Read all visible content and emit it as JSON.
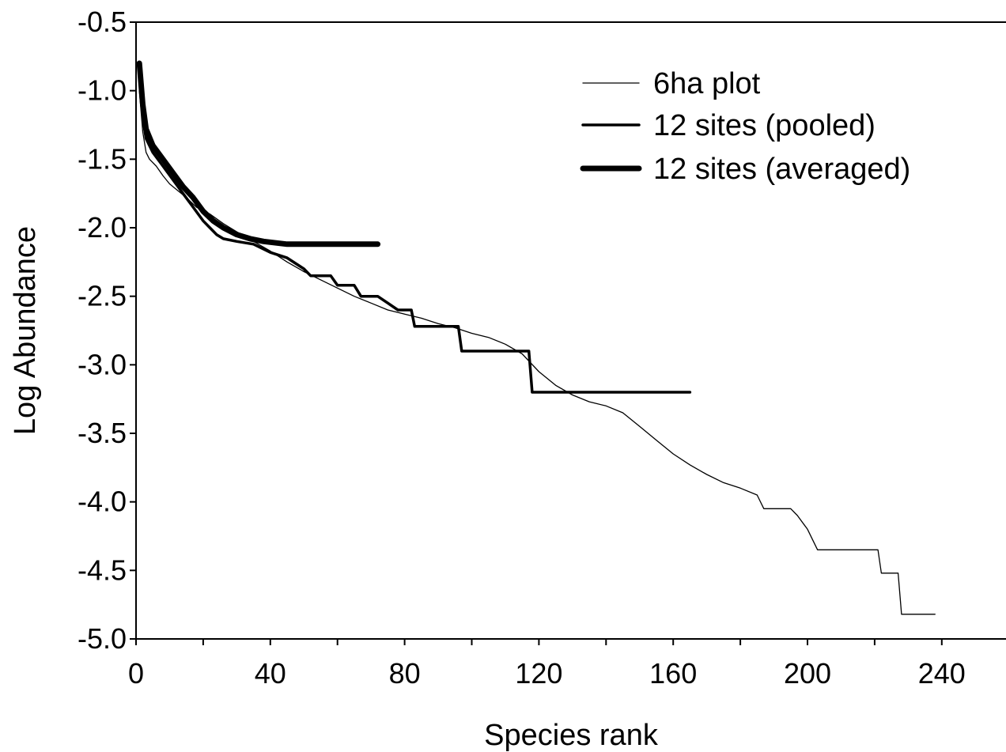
{
  "chart_data": {
    "type": "line",
    "xlabel": "Species rank",
    "ylabel": "Log Abundance",
    "xlim": [
      0,
      260
    ],
    "ylim": [
      -5.0,
      -0.5
    ],
    "xticks": [
      0,
      40,
      80,
      120,
      160,
      200,
      240
    ],
    "xtick_labels": [
      "0",
      "40",
      "80",
      "120",
      "160",
      "200",
      "240"
    ],
    "yticks": [
      -0.5,
      -1.0,
      -1.5,
      -2.0,
      -2.5,
      -3.0,
      -3.5,
      -4.0,
      -4.5,
      -5.0
    ],
    "ytick_labels": [
      "-0.5",
      "-1.0",
      "-1.5",
      "-2.0",
      "-2.5",
      "-3.0",
      "-3.5",
      "-4.0",
      "-4.5",
      "-5.0"
    ],
    "grid": false,
    "legend_position": "top-right",
    "series": [
      {
        "name": "6ha plot",
        "style": "thin",
        "color": "#000000",
        "x": [
          1,
          2,
          3,
          4,
          6,
          8,
          10,
          12,
          15,
          18,
          22,
          26,
          30,
          35,
          40,
          45,
          50,
          55,
          60,
          65,
          70,
          75,
          80,
          85,
          90,
          95,
          100,
          105,
          110,
          115,
          120,
          125,
          130,
          135,
          140,
          145,
          150,
          155,
          160,
          165,
          170,
          175,
          180,
          185,
          187,
          195,
          197,
          200,
          203,
          205,
          210,
          215,
          221,
          222,
          226,
          227,
          228,
          230,
          235,
          238
        ],
        "y": [
          -1.0,
          -1.3,
          -1.45,
          -1.5,
          -1.55,
          -1.62,
          -1.68,
          -1.72,
          -1.78,
          -1.85,
          -1.9,
          -1.97,
          -2.03,
          -2.1,
          -2.17,
          -2.25,
          -2.32,
          -2.38,
          -2.44,
          -2.5,
          -2.55,
          -2.6,
          -2.63,
          -2.66,
          -2.7,
          -2.73,
          -2.77,
          -2.8,
          -2.85,
          -2.92,
          -3.05,
          -3.15,
          -3.22,
          -3.27,
          -3.3,
          -3.35,
          -3.45,
          -3.55,
          -3.65,
          -3.73,
          -3.8,
          -3.86,
          -3.9,
          -3.95,
          -4.05,
          -4.05,
          -4.1,
          -4.2,
          -4.35,
          -4.35,
          -4.35,
          -4.35,
          -4.35,
          -4.52,
          -4.52,
          -4.52,
          -4.82,
          -4.82,
          -4.82,
          -4.82
        ]
      },
      {
        "name": "12 sites (pooled)",
        "style": "medium",
        "color": "#000000",
        "x": [
          1,
          2,
          3,
          5,
          8,
          11,
          14,
          17,
          20,
          22,
          24,
          26,
          30,
          35,
          40,
          45,
          50,
          52,
          58,
          60,
          65,
          67,
          72,
          75,
          78,
          82,
          83,
          88,
          96,
          97,
          105,
          110,
          117,
          118,
          125,
          135,
          145,
          155,
          165
        ],
        "y": [
          -0.85,
          -1.2,
          -1.35,
          -1.45,
          -1.55,
          -1.65,
          -1.75,
          -1.85,
          -1.95,
          -2.0,
          -2.05,
          -2.08,
          -2.1,
          -2.12,
          -2.18,
          -2.22,
          -2.3,
          -2.35,
          -2.35,
          -2.42,
          -2.42,
          -2.5,
          -2.5,
          -2.55,
          -2.6,
          -2.6,
          -2.72,
          -2.72,
          -2.72,
          -2.9,
          -2.9,
          -2.9,
          -2.9,
          -3.2,
          -3.2,
          -3.2,
          -3.2,
          -3.2,
          -3.2
        ]
      },
      {
        "name": "12 sites (averaged)",
        "style": "thick",
        "color": "#000000",
        "x": [
          1,
          2,
          3,
          5,
          8,
          11,
          14,
          17,
          20,
          23,
          26,
          30,
          34,
          38,
          45,
          55,
          65,
          72
        ],
        "y": [
          -0.8,
          -1.1,
          -1.28,
          -1.4,
          -1.5,
          -1.6,
          -1.7,
          -1.78,
          -1.88,
          -1.95,
          -2.0,
          -2.05,
          -2.08,
          -2.1,
          -2.12,
          -2.12,
          -2.12,
          -2.12
        ]
      }
    ]
  }
}
